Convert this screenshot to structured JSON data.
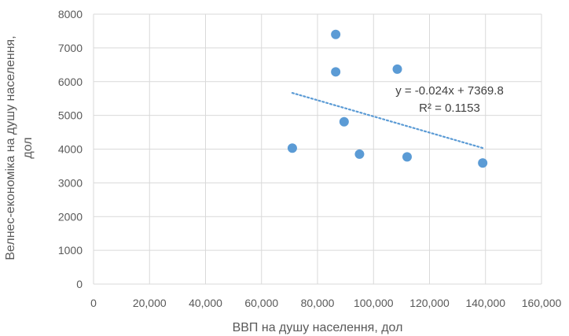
{
  "chart_data": {
    "type": "scatter",
    "xlabel": "ВВП на душу населення, дол",
    "ylabel_lines": [
      "Велнес-економіка на душу населення,",
      "дол"
    ],
    "xlim": [
      0,
      160000
    ],
    "ylim": [
      0,
      8000
    ],
    "x_ticks": [
      0,
      20000,
      40000,
      60000,
      80000,
      100000,
      120000,
      140000,
      160000
    ],
    "x_tick_labels": [
      "0",
      "20,000",
      "40,000",
      "60,000",
      "80,000",
      "100,000",
      "120,000",
      "140,000",
      "160,000"
    ],
    "y_ticks": [
      0,
      1000,
      2000,
      3000,
      4000,
      5000,
      6000,
      7000,
      8000
    ],
    "y_tick_labels": [
      "0",
      "1000",
      "2000",
      "3000",
      "4000",
      "5000",
      "6000",
      "7000",
      "8000"
    ],
    "grid": true,
    "series": [
      {
        "marker_color": "#5B9BD5",
        "points": [
          {
            "x": 71000,
            "y": 4030
          },
          {
            "x": 86500,
            "y": 7400
          },
          {
            "x": 86500,
            "y": 6290
          },
          {
            "x": 89500,
            "y": 4810
          },
          {
            "x": 95000,
            "y": 3850
          },
          {
            "x": 108500,
            "y": 6370
          },
          {
            "x": 112000,
            "y": 3770
          },
          {
            "x": 139000,
            "y": 3590
          }
        ]
      }
    ],
    "trendline": {
      "kind": "linear",
      "slope": -0.024,
      "intercept": 7369.8,
      "x_range": [
        71000,
        139000
      ],
      "color": "#5B9BD5",
      "equation_label": "y = -0.024x + 7369.8",
      "r2_label": "R² = 0.1153"
    },
    "colors": {
      "grid": "#D9D9D9",
      "axis_text": "#595959"
    }
  }
}
